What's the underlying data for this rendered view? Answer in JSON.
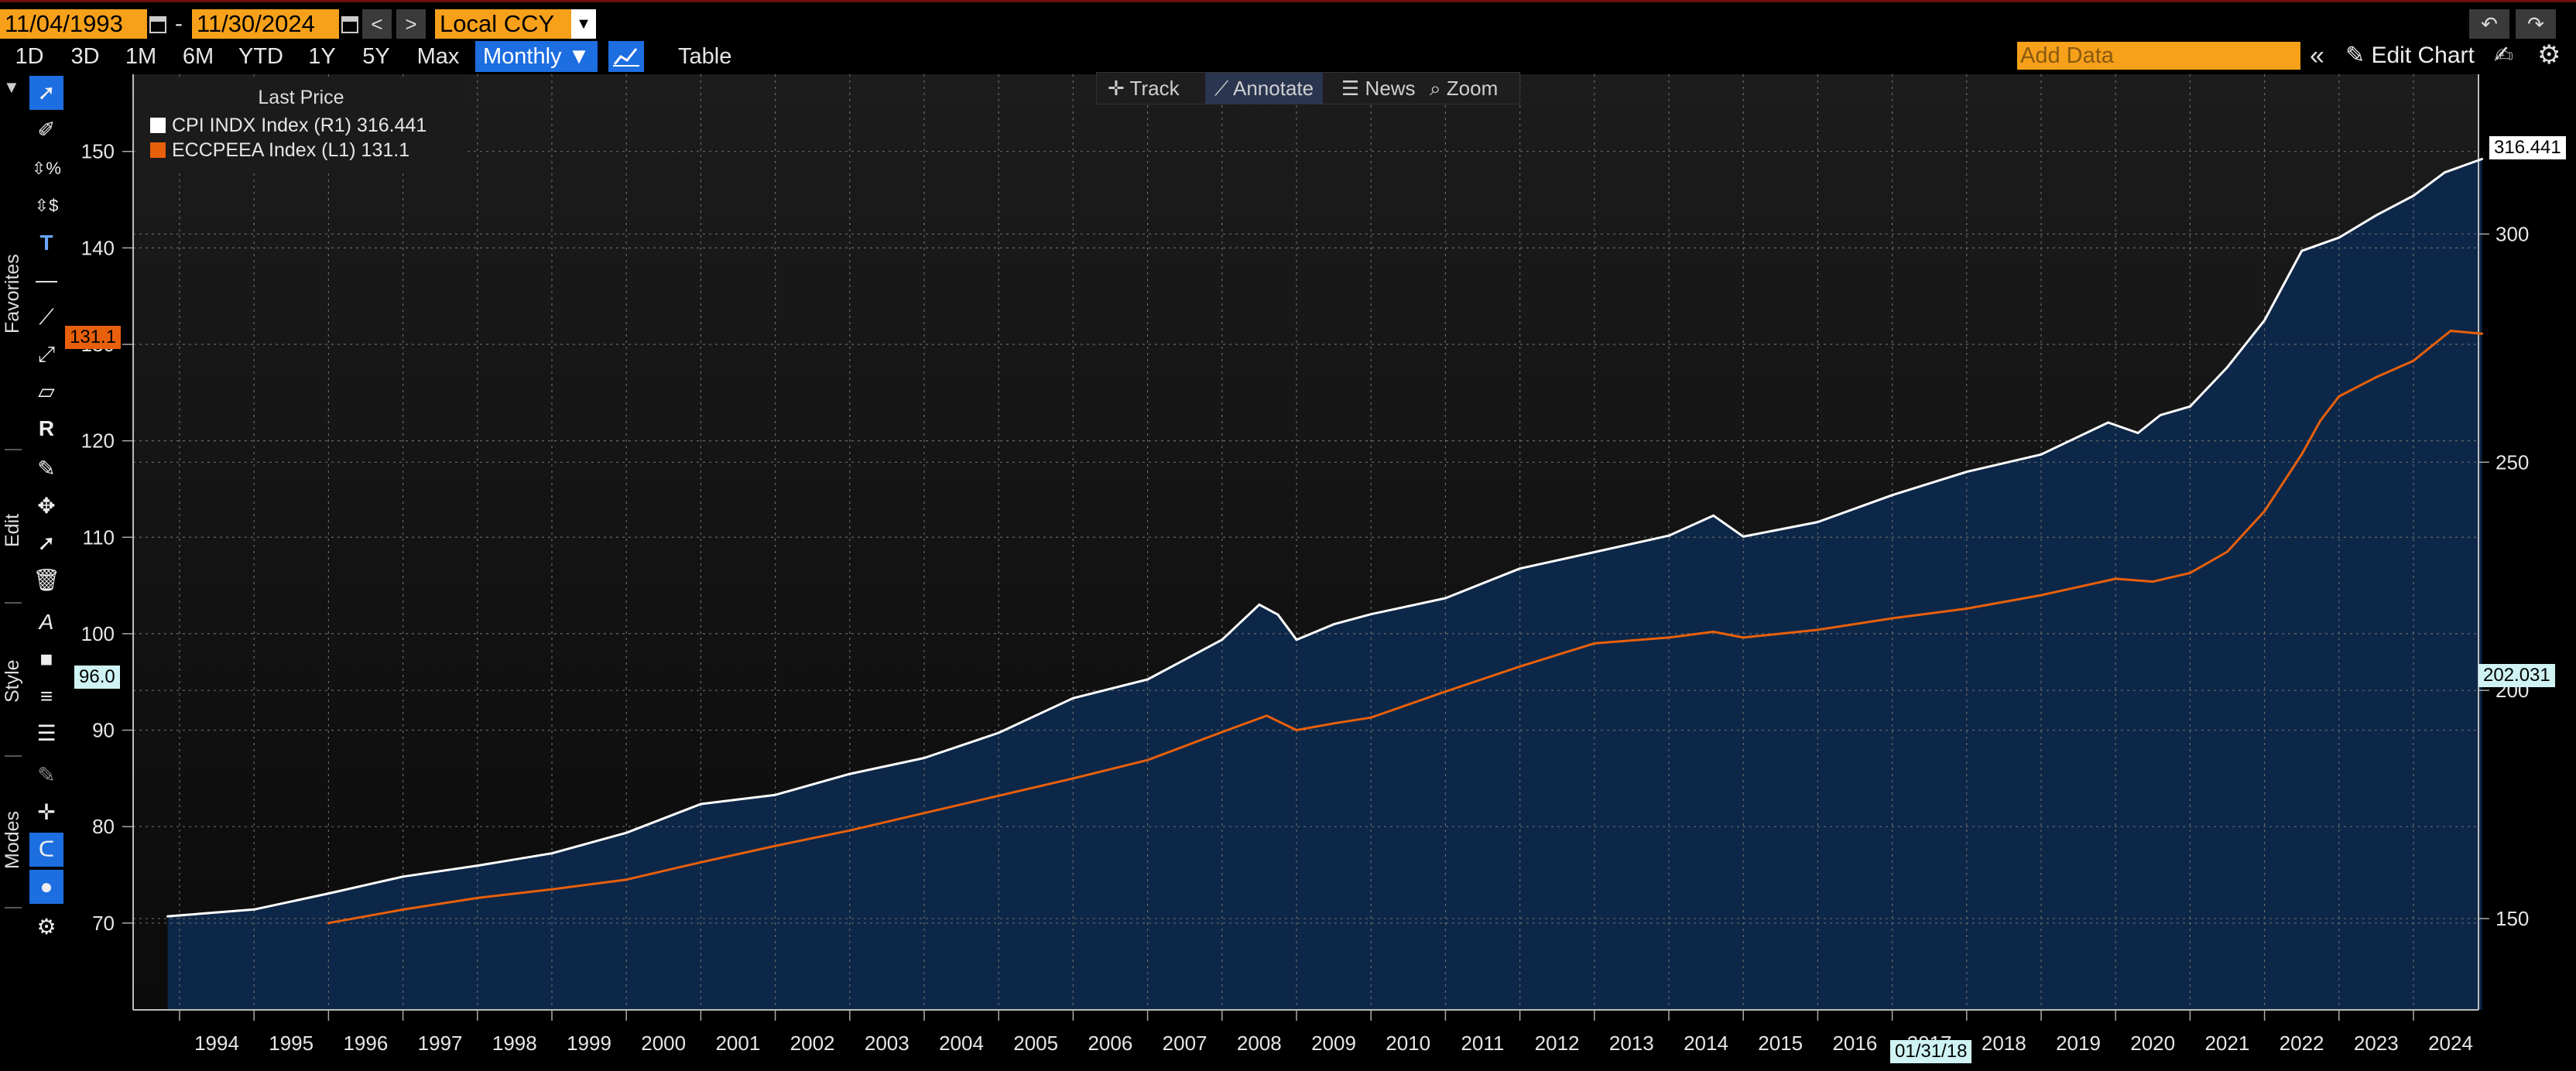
{
  "toolbar": {
    "start_date": "11/04/1993",
    "date_separator": "-",
    "end_date": "11/30/2024",
    "prev_label": "<",
    "next_label": ">",
    "currency": "Local CCY",
    "ranges": [
      "1D",
      "3D",
      "1M",
      "6M",
      "YTD",
      "1Y",
      "5Y",
      "Max"
    ],
    "frequency": "Monthly ▼",
    "table_label": "Table",
    "add_data_placeholder": "Add Data",
    "edit_chart_label": "Edit Chart"
  },
  "annotate_bar": {
    "track": "Track",
    "annotate": "Annotate",
    "news": "News",
    "zoom": "Zoom"
  },
  "sidebar": {
    "favorites": "Favorites",
    "edit": "Edit",
    "style": "Style",
    "modes": "Modes"
  },
  "legend": {
    "title": "Last Price",
    "items": [
      {
        "label": "CPI INDX Index  (R1) 316.441",
        "color": "#ffffff"
      },
      {
        "label": "ECCPEEA Index  (L1) 131.1",
        "color": "#e8600b"
      }
    ]
  },
  "badges": {
    "last_right": "316.441",
    "last_left": "131.1",
    "marker_left": "96.0",
    "marker_right": "202.031",
    "crosshair_date": "01/31/18"
  },
  "chart_data": {
    "type": "line",
    "x_label_years": [
      "1994",
      "1995",
      "1996",
      "1997",
      "1998",
      "1999",
      "2000",
      "2001",
      "2002",
      "2003",
      "2004",
      "2005",
      "2006",
      "2007",
      "2008",
      "2009",
      "2010",
      "2011",
      "2012",
      "2013",
      "2014",
      "2015",
      "2016",
      "2017",
      "2018",
      "2019",
      "2020",
      "2021",
      "2022",
      "2023",
      "2024"
    ],
    "left_axis": {
      "ticks": [
        70,
        80,
        90,
        100,
        110,
        120,
        130,
        140,
        150
      ],
      "range": [
        61,
        158
      ]
    },
    "right_axis": {
      "ticks": [
        150,
        200,
        250,
        300
      ],
      "range": [
        130,
        335
      ]
    },
    "grid": true,
    "legend_position": "top-left",
    "series": [
      {
        "name": "CPI INDX Index",
        "axis": "right",
        "color": "#ffffff",
        "area_fill": "#0d2748",
        "x": [
          1993.84,
          1995.0,
          1996.0,
          1997.0,
          1998.0,
          1999.0,
          2000.0,
          2001.0,
          2002.0,
          2003.0,
          2004.0,
          2005.0,
          2006.0,
          2007.0,
          2008.0,
          2008.5,
          2008.75,
          2009.0,
          2009.5,
          2010.0,
          2011.0,
          2012.0,
          2013.0,
          2014.0,
          2014.6,
          2015.0,
          2016.0,
          2017.0,
          2018.0,
          2019.0,
          2019.9,
          2020.3,
          2020.6,
          2021.0,
          2021.5,
          2022.0,
          2022.5,
          2023.0,
          2023.5,
          2024.0,
          2024.42,
          2024.92
        ],
        "values": [
          150.5,
          152.0,
          155.5,
          159.2,
          161.6,
          164.3,
          168.8,
          175.1,
          177.1,
          181.7,
          185.2,
          190.7,
          198.3,
          202.4,
          211.1,
          218.8,
          216.6,
          211.1,
          214.5,
          216.7,
          220.2,
          226.7,
          230.3,
          233.9,
          238.3,
          233.7,
          236.9,
          242.8,
          247.9,
          251.7,
          258.7,
          256.4,
          260.3,
          262.2,
          270.8,
          281.1,
          296.3,
          299.2,
          304.1,
          308.4,
          313.5,
          316.441
        ]
      },
      {
        "name": "ECCPEEA Index",
        "axis": "left",
        "color": "#e8600b",
        "x": [
          1996.0,
          1997.0,
          1998.0,
          1999.0,
          2000.0,
          2001.0,
          2002.0,
          2003.0,
          2004.0,
          2005.0,
          2006.0,
          2007.0,
          2008.0,
          2008.6,
          2009.0,
          2009.5,
          2010.0,
          2011.0,
          2012.0,
          2013.0,
          2014.0,
          2014.6,
          2015.0,
          2016.0,
          2017.0,
          2018.0,
          2019.0,
          2020.0,
          2020.5,
          2021.0,
          2021.5,
          2022.0,
          2022.5,
          2022.75,
          2023.0,
          2023.5,
          2024.0,
          2024.5,
          2024.92
        ],
        "values": [
          70.0,
          71.4,
          72.6,
          73.5,
          74.5,
          76.3,
          78.0,
          79.6,
          81.4,
          83.2,
          85.0,
          86.9,
          89.8,
          91.5,
          90.0,
          90.7,
          91.3,
          94.0,
          96.6,
          99.0,
          99.6,
          100.2,
          99.6,
          100.4,
          101.6,
          102.6,
          104.0,
          105.7,
          105.4,
          106.3,
          108.5,
          112.7,
          118.6,
          122.1,
          124.6,
          126.6,
          128.3,
          131.4,
          131.1
        ]
      }
    ]
  }
}
